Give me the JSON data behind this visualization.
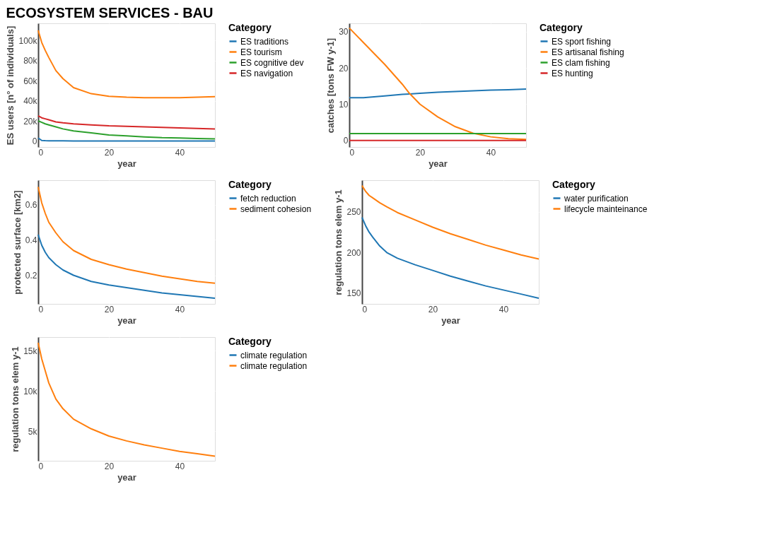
{
  "chart_data": [
    {
      "type": "line",
      "title": "ECOSYSTEM SERVICES - BAU",
      "xlabel": "year",
      "ylabel": "ES users [n° of individuals]",
      "legend_title": "Category",
      "legend": "right",
      "grid": true,
      "x": [
        0,
        1,
        2,
        3,
        5,
        7,
        10,
        15,
        20,
        25,
        30,
        35,
        40,
        45,
        50
      ],
      "series": [
        {
          "name": "ES traditions",
          "color": "#1f77b4",
          "values": [
            3000,
            500,
            300,
            200,
            100,
            100,
            0,
            0,
            0,
            0,
            0,
            0,
            0,
            0,
            0
          ]
        },
        {
          "name": "ES tourism",
          "color": "#ff7f0e",
          "values": [
            110000,
            98000,
            90000,
            83000,
            70000,
            62000,
            53000,
            47000,
            44500,
            43500,
            43000,
            43000,
            43000,
            43500,
            44000
          ]
        },
        {
          "name": "ES cognitive dev",
          "color": "#2ca02c",
          "values": [
            20000,
            18500,
            17000,
            16000,
            14000,
            12000,
            10000,
            8000,
            6000,
            5000,
            4000,
            3300,
            3000,
            2500,
            2000
          ]
        },
        {
          "name": "ES navigation",
          "color": "#d62728",
          "values": [
            25000,
            23000,
            22000,
            21000,
            19000,
            18000,
            17000,
            16000,
            15000,
            14500,
            14000,
            13500,
            13000,
            12500,
            12000
          ]
        }
      ],
      "xlim": [
        0,
        50
      ],
      "xticks": [
        0,
        20,
        40
      ],
      "ylim": [
        -6000,
        117000
      ],
      "yticks": [
        0,
        {
          "value": 20000,
          "label": "20k"
        },
        {
          "value": 40000,
          "label": "40k"
        },
        {
          "value": 60000,
          "label": "60k"
        },
        {
          "value": 80000,
          "label": "80k"
        },
        {
          "value": 100000,
          "label": "100k"
        }
      ]
    },
    {
      "type": "line",
      "xlabel": "year",
      "ylabel": "catches [tons FW y-1]",
      "legend_title": "Category",
      "legend": "right",
      "grid": true,
      "x": [
        0,
        4,
        10,
        15,
        17,
        20,
        25,
        30,
        35,
        40,
        45,
        50
      ],
      "series": [
        {
          "name": "ES sport fishing",
          "color": "#1f77b4",
          "values": [
            11.8,
            11.8,
            12.3,
            12.7,
            12.8,
            13,
            13.3,
            13.5,
            13.7,
            13.9,
            14,
            14.2
          ]
        },
        {
          "name": "ES artisanal fishing",
          "color": "#ff7f0e",
          "values": [
            31,
            27,
            21,
            15.5,
            13,
            10,
            6.5,
            3.8,
            2,
            1,
            0.5,
            0.3
          ]
        },
        {
          "name": "ES clam fishing",
          "color": "#2ca02c",
          "values": [
            1.9,
            1.9,
            1.9,
            1.9,
            1.9,
            1.9,
            1.9,
            1.9,
            1.9,
            1.9,
            1.9,
            1.9
          ]
        },
        {
          "name": "ES hunting",
          "color": "#d62728",
          "values": [
            0,
            0,
            0,
            0,
            0,
            0,
            0,
            0,
            0,
            0,
            0,
            0
          ]
        }
      ],
      "xlim": [
        0,
        50
      ],
      "xticks": [
        0,
        20,
        40
      ],
      "ylim": [
        -1.8,
        32.3
      ],
      "yticks": [
        0,
        10,
        20,
        30
      ]
    },
    {
      "type": "line",
      "xlabel": "year",
      "ylabel": "protected surface [km2]",
      "legend_title": "Category",
      "legend": "right",
      "grid": true,
      "x": [
        0,
        1,
        2,
        3,
        5,
        7,
        10,
        15,
        20,
        25,
        30,
        35,
        40,
        45,
        50
      ],
      "series": [
        {
          "name": "fetch reduction",
          "color": "#1f77b4",
          "values": [
            0.43,
            0.37,
            0.33,
            0.3,
            0.26,
            0.23,
            0.2,
            0.165,
            0.145,
            0.13,
            0.115,
            0.1,
            0.09,
            0.08,
            0.07
          ]
        },
        {
          "name": "sediment cohesion",
          "color": "#ff7f0e",
          "values": [
            0.7,
            0.61,
            0.55,
            0.5,
            0.44,
            0.39,
            0.34,
            0.29,
            0.26,
            0.235,
            0.215,
            0.195,
            0.18,
            0.165,
            0.155
          ]
        }
      ],
      "xlim": [
        0,
        50
      ],
      "xticks": [
        0,
        20,
        40
      ],
      "ylim": [
        0.038,
        0.738
      ],
      "yticks": [
        0.2,
        0.4,
        0.6
      ]
    },
    {
      "type": "line",
      "xlabel": "year",
      "ylabel": "regulation tons elem y-1",
      "legend_title": "Category",
      "legend": "right",
      "grid": true,
      "x": [
        0,
        1,
        2,
        3,
        5,
        7,
        10,
        15,
        20,
        25,
        30,
        35,
        40,
        45,
        50
      ],
      "series": [
        {
          "name": "water purification",
          "color": "#1f77b4",
          "values": [
            243,
            233,
            225,
            219,
            208,
            200,
            193,
            185,
            178,
            171,
            165,
            159,
            154,
            149,
            144
          ]
        },
        {
          "name": "lifecycle mainteinance",
          "color": "#ff7f0e",
          "values": [
            282,
            275,
            270,
            267,
            261,
            256,
            249,
            240,
            231,
            223,
            216,
            209,
            203,
            197,
            192
          ]
        }
      ],
      "xlim": [
        0,
        50
      ],
      "xticks": [
        0,
        20,
        40
      ],
      "ylim": [
        137,
        288.6
      ],
      "yticks": [
        150,
        200,
        250
      ]
    },
    {
      "type": "line",
      "xlabel": "year",
      "ylabel": "regulation tons elem y-1",
      "legend_title": "Category",
      "legend": "right",
      "grid": true,
      "x": [
        0,
        1,
        2,
        3,
        5,
        7,
        10,
        15,
        20,
        25,
        30,
        35,
        40,
        45,
        50
      ],
      "series": [
        {
          "name": "climate regulation",
          "color": "#1f77b4",
          "values": [
            null,
            null,
            null,
            null,
            null,
            null,
            null,
            null,
            null,
            null,
            null,
            null,
            null,
            null,
            null
          ]
        },
        {
          "name": "climate regulation",
          "color": "#ff7f0e",
          "values": [
            16000,
            14000,
            12500,
            11000,
            9000,
            7800,
            6500,
            5300,
            4400,
            3800,
            3300,
            2900,
            2500,
            2200,
            1900
          ]
        }
      ],
      "xlim": [
        0,
        50
      ],
      "xticks": [
        0,
        20,
        40
      ],
      "ylim": [
        1330,
        16700
      ],
      "yticks": [
        {
          "value": 5000,
          "label": "5k"
        },
        {
          "value": 10000,
          "label": "10k"
        },
        {
          "value": 15000,
          "label": "15k"
        }
      ]
    }
  ]
}
